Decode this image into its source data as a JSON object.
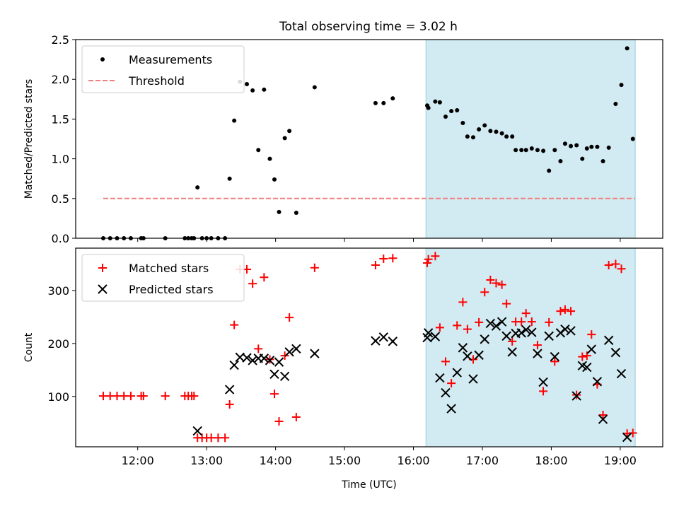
{
  "title": "Total observing time = 3.02 h",
  "colors": {
    "measurement": "#000000",
    "threshold": "#f08080",
    "matched": "#ff0000",
    "predicted": "#000000",
    "span": "#add8e6"
  },
  "chart_data": [
    {
      "type": "scatter",
      "ylabel": "Matched/Predicted stars",
      "xlim": [
        "11:06",
        "19:37"
      ],
      "ylim": [
        0,
        2.5
      ],
      "yticks": [
        "0.0",
        "0.5",
        "1.0",
        "1.5",
        "2.0",
        "2.5"
      ],
      "highlight_span": [
        "16:11",
        "19:13"
      ],
      "legend": {
        "position": "top-left",
        "entries": [
          "Measurements",
          "Threshold"
        ]
      },
      "series": [
        {
          "name": "Measurements",
          "marker": "dot",
          "points": [
            [
              "11:30",
              0
            ],
            [
              "11:36",
              0
            ],
            [
              "11:42",
              0
            ],
            [
              "11:48",
              0
            ],
            [
              "11:54",
              0
            ],
            [
              "12:03",
              0
            ],
            [
              "12:05",
              0
            ],
            [
              "12:24",
              0
            ],
            [
              "12:41",
              0
            ],
            [
              "12:44",
              0
            ],
            [
              "12:47",
              0
            ],
            [
              "12:49",
              0
            ],
            [
              "12:52",
              0.64
            ],
            [
              "12:56",
              0
            ],
            [
              "13:00",
              0
            ],
            [
              "13:04",
              0
            ],
            [
              "13:10",
              0
            ],
            [
              "13:16",
              0
            ],
            [
              "13:20",
              0.75
            ],
            [
              "13:24",
              1.48
            ],
            [
              "13:29",
              1.97
            ],
            [
              "13:35",
              1.94
            ],
            [
              "13:40",
              1.86
            ],
            [
              "13:45",
              1.11
            ],
            [
              "13:50",
              1.87
            ],
            [
              "13:55",
              1.0
            ],
            [
              "13:59",
              0.74
            ],
            [
              "14:03",
              0.33
            ],
            [
              "14:08",
              1.26
            ],
            [
              "14:12",
              1.35
            ],
            [
              "14:18",
              0.32
            ],
            [
              "14:34",
              1.9
            ],
            [
              "15:27",
              1.7
            ],
            [
              "15:34",
              1.7
            ],
            [
              "15:42",
              1.76
            ],
            [
              "16:12",
              1.67
            ],
            [
              "16:13",
              1.64
            ],
            [
              "16:19",
              1.72
            ],
            [
              "16:23",
              1.71
            ],
            [
              "16:28",
              1.53
            ],
            [
              "16:33",
              1.6
            ],
            [
              "16:38",
              1.61
            ],
            [
              "16:43",
              1.45
            ],
            [
              "16:47",
              1.28
            ],
            [
              "16:52",
              1.27
            ],
            [
              "16:57",
              1.37
            ],
            [
              "17:02",
              1.42
            ],
            [
              "17:07",
              1.35
            ],
            [
              "17:12",
              1.34
            ],
            [
              "17:17",
              1.32
            ],
            [
              "17:21",
              1.28
            ],
            [
              "17:26",
              1.28
            ],
            [
              "17:29",
              1.11
            ],
            [
              "17:34",
              1.11
            ],
            [
              "17:38",
              1.11
            ],
            [
              "17:43",
              1.13
            ],
            [
              "17:48",
              1.11
            ],
            [
              "17:53",
              1.1
            ],
            [
              "17:58",
              0.85
            ],
            [
              "18:03",
              1.11
            ],
            [
              "18:08",
              0.97
            ],
            [
              "18:12",
              1.19
            ],
            [
              "18:17",
              1.16
            ],
            [
              "18:22",
              1.17
            ],
            [
              "18:27",
              1.0
            ],
            [
              "18:31",
              1.13
            ],
            [
              "18:35",
              1.15
            ],
            [
              "18:40",
              1.15
            ],
            [
              "18:45",
              0.97
            ],
            [
              "18:50",
              1.14
            ],
            [
              "18:56",
              1.69
            ],
            [
              "19:01",
              1.93
            ],
            [
              "19:06",
              2.39
            ],
            [
              "19:11",
              1.25
            ]
          ]
        },
        {
          "name": "Threshold",
          "marker": "dashed-line",
          "points": [
            [
              "11:30",
              0.5
            ],
            [
              "19:13",
              0.5
            ]
          ]
        }
      ]
    },
    {
      "type": "scatter",
      "xlabel": "Time (UTC)",
      "ylabel": "Count",
      "xlim": [
        "11:06",
        "19:37"
      ],
      "ylim": [
        5,
        380
      ],
      "yticks": [
        "100",
        "200",
        "300"
      ],
      "xticks": [
        "12:00",
        "13:00",
        "14:00",
        "15:00",
        "16:00",
        "17:00",
        "18:00",
        "19:00"
      ],
      "highlight_span": [
        "16:11",
        "19:13"
      ],
      "legend": {
        "position": "top-left",
        "entries": [
          "Matched stars",
          "Predicted stars"
        ]
      },
      "series": [
        {
          "name": "Matched stars",
          "marker": "plus",
          "points": [
            [
              "11:30",
              101
            ],
            [
              "11:36",
              101
            ],
            [
              "11:42",
              101
            ],
            [
              "11:48",
              101
            ],
            [
              "11:54",
              101
            ],
            [
              "12:03",
              101
            ],
            [
              "12:05",
              101
            ],
            [
              "12:24",
              101
            ],
            [
              "12:41",
              101
            ],
            [
              "12:44",
              101
            ],
            [
              "12:47",
              101
            ],
            [
              "12:49",
              101
            ],
            [
              "12:52",
              22
            ],
            [
              "12:56",
              22
            ],
            [
              "13:00",
              22
            ],
            [
              "13:04",
              22
            ],
            [
              "13:10",
              22
            ],
            [
              "13:16",
              22
            ],
            [
              "13:20",
              85
            ],
            [
              "13:24",
              235
            ],
            [
              "13:29",
              340
            ],
            [
              "13:35",
              340
            ],
            [
              "13:40",
              313
            ],
            [
              "13:45",
              190
            ],
            [
              "13:50",
              325
            ],
            [
              "13:55",
              170
            ],
            [
              "13:59",
              105
            ],
            [
              "14:03",
              53
            ],
            [
              "14:08",
              177
            ],
            [
              "14:12",
              249
            ],
            [
              "14:18",
              61
            ],
            [
              "14:34",
              343
            ],
            [
              "15:27",
              348
            ],
            [
              "15:34",
              360
            ],
            [
              "15:42",
              361
            ],
            [
              "16:12",
              352
            ],
            [
              "16:13",
              359
            ],
            [
              "16:19",
              365
            ],
            [
              "16:23",
              230
            ],
            [
              "16:28",
              166
            ],
            [
              "16:33",
              125
            ],
            [
              "16:38",
              234
            ],
            [
              "16:43",
              278
            ],
            [
              "16:47",
              227
            ],
            [
              "16:52",
              170
            ],
            [
              "16:57",
              240
            ],
            [
              "17:02",
              297
            ],
            [
              "17:07",
              320
            ],
            [
              "17:12",
              314
            ],
            [
              "17:17",
              311
            ],
            [
              "17:21",
              275
            ],
            [
              "17:26",
              204
            ],
            [
              "17:29",
              241
            ],
            [
              "17:34",
              241
            ],
            [
              "17:38",
              257
            ],
            [
              "17:43",
              241
            ],
            [
              "17:48",
              197
            ],
            [
              "17:53",
              110
            ],
            [
              "17:58",
              240
            ],
            [
              "18:03",
              166
            ],
            [
              "18:08",
              261
            ],
            [
              "18:12",
              264
            ],
            [
              "18:17",
              261
            ],
            [
              "18:22",
              103
            ],
            [
              "18:27",
              175
            ],
            [
              "18:31",
              177
            ],
            [
              "18:35",
              217
            ],
            [
              "18:40",
              123
            ],
            [
              "18:45",
              65
            ],
            [
              "18:50",
              348
            ],
            [
              "18:56",
              350
            ],
            [
              "19:01",
              341
            ],
            [
              "19:06",
              30
            ],
            [
              "19:11",
              31
            ]
          ]
        },
        {
          "name": "Predicted stars",
          "marker": "cross",
          "points": [
            [
              "12:52",
              35
            ],
            [
              "13:20",
              113
            ],
            [
              "13:24",
              159
            ],
            [
              "13:29",
              174
            ],
            [
              "13:35",
              173
            ],
            [
              "13:40",
              168
            ],
            [
              "13:45",
              172
            ],
            [
              "13:50",
              172
            ],
            [
              "13:55",
              168
            ],
            [
              "13:59",
              142
            ],
            [
              "14:03",
              165
            ],
            [
              "14:08",
              138
            ],
            [
              "14:12",
              184
            ],
            [
              "14:18",
              190
            ],
            [
              "14:34",
              181
            ],
            [
              "15:27",
              205
            ],
            [
              "15:34",
              212
            ],
            [
              "15:42",
              204
            ],
            [
              "16:12",
              211
            ],
            [
              "16:13",
              220
            ],
            [
              "16:19",
              213
            ],
            [
              "16:23",
              135
            ],
            [
              "16:28",
              107
            ],
            [
              "16:33",
              77
            ],
            [
              "16:38",
              145
            ],
            [
              "16:43",
              192
            ],
            [
              "16:47",
              176
            ],
            [
              "16:52",
              133
            ],
            [
              "16:57",
              178
            ],
            [
              "17:02",
              208
            ],
            [
              "17:07",
              238
            ],
            [
              "17:12",
              233
            ],
            [
              "17:17",
              241
            ],
            [
              "17:21",
              214
            ],
            [
              "17:26",
              184
            ],
            [
              "17:29",
              219
            ],
            [
              "17:34",
              220
            ],
            [
              "17:38",
              226
            ],
            [
              "17:43",
              221
            ],
            [
              "17:48",
              181
            ],
            [
              "17:53",
              127
            ],
            [
              "17:58",
              214
            ],
            [
              "18:03",
              175
            ],
            [
              "18:08",
              220
            ],
            [
              "18:12",
              227
            ],
            [
              "18:17",
              224
            ],
            [
              "18:22",
              101
            ],
            [
              "18:27",
              158
            ],
            [
              "18:31",
              155
            ],
            [
              "18:35",
              189
            ],
            [
              "18:40",
              128
            ],
            [
              "18:45",
              57
            ],
            [
              "18:50",
              206
            ],
            [
              "18:56",
              183
            ],
            [
              "19:01",
              143
            ],
            [
              "19:06",
              23
            ]
          ]
        }
      ]
    }
  ]
}
